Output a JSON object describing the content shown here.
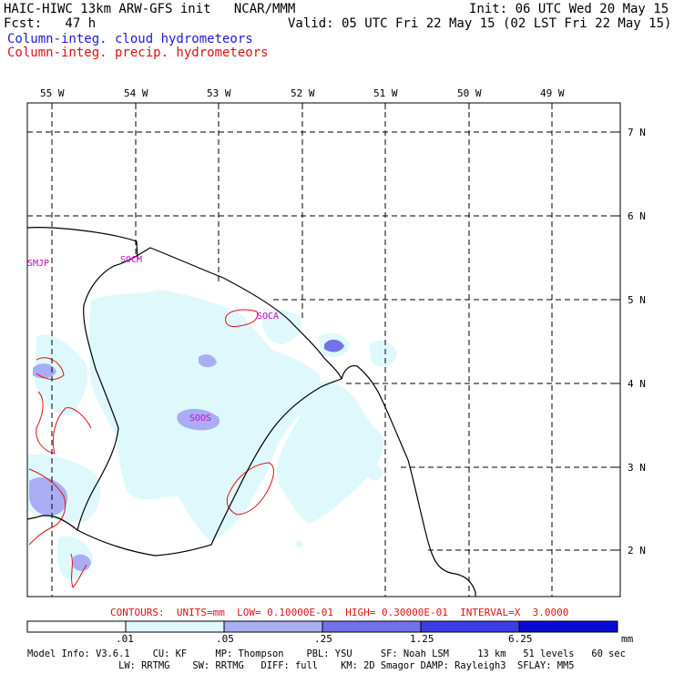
{
  "header": {
    "title": "HAIC-HIWC 13km ARW-GFS init   NCAR/MMM",
    "fcst": "Fcst:   47 h",
    "init": "Init: 06 UTC Wed 20 May 15",
    "valid": "Valid: 05 UTC Fri 22 May 15 (02 LST Fri 22 May 15)",
    "field1": "Column-integ. cloud hydrometeors",
    "field2": "Column-integ. precip. hydrometeors"
  },
  "colors": {
    "field1": "#1a1adb",
    "field2": "#e01010",
    "contour": "#e01010",
    "shade1": "#dff8fc",
    "shade2": "#a9aef4",
    "shade3": "#7272ea",
    "shade4": "#3c3ce6",
    "shade5": "#0a0ad8",
    "station": "#cc00cc"
  },
  "map": {
    "lon_labels": [
      "55 W",
      "54 W",
      "53 W",
      "52 W",
      "51 W",
      "50 W",
      "49 W"
    ],
    "lat_labels": [
      "7 N",
      "6 N",
      "5 N",
      "4 N",
      "3 N",
      "2 N"
    ],
    "stations": [
      "SMJP",
      "SOCM",
      "SOCA",
      "SOOS"
    ]
  },
  "contour_info": "CONTOURS:  UNITS=mm  LOW= 0.10000E-01  HIGH= 0.30000E-01  INTERVAL=X  3.0000",
  "colorbar": {
    "labels": [
      ".01",
      ".05",
      ".25",
      "1.25",
      "6.25"
    ],
    "unit": "mm"
  },
  "footer": {
    "line1": "Model Info: V3.6.1    CU: KF     MP: Thompson    PBL: YSU     SF: Noah LSM     13 km   51 levels   60 sec",
    "line2": "                LW: RRTMG    SW: RRTMG   DIFF: full    KM: 2D Smagor DAMP: Rayleigh3  SFLAY: MM5"
  }
}
